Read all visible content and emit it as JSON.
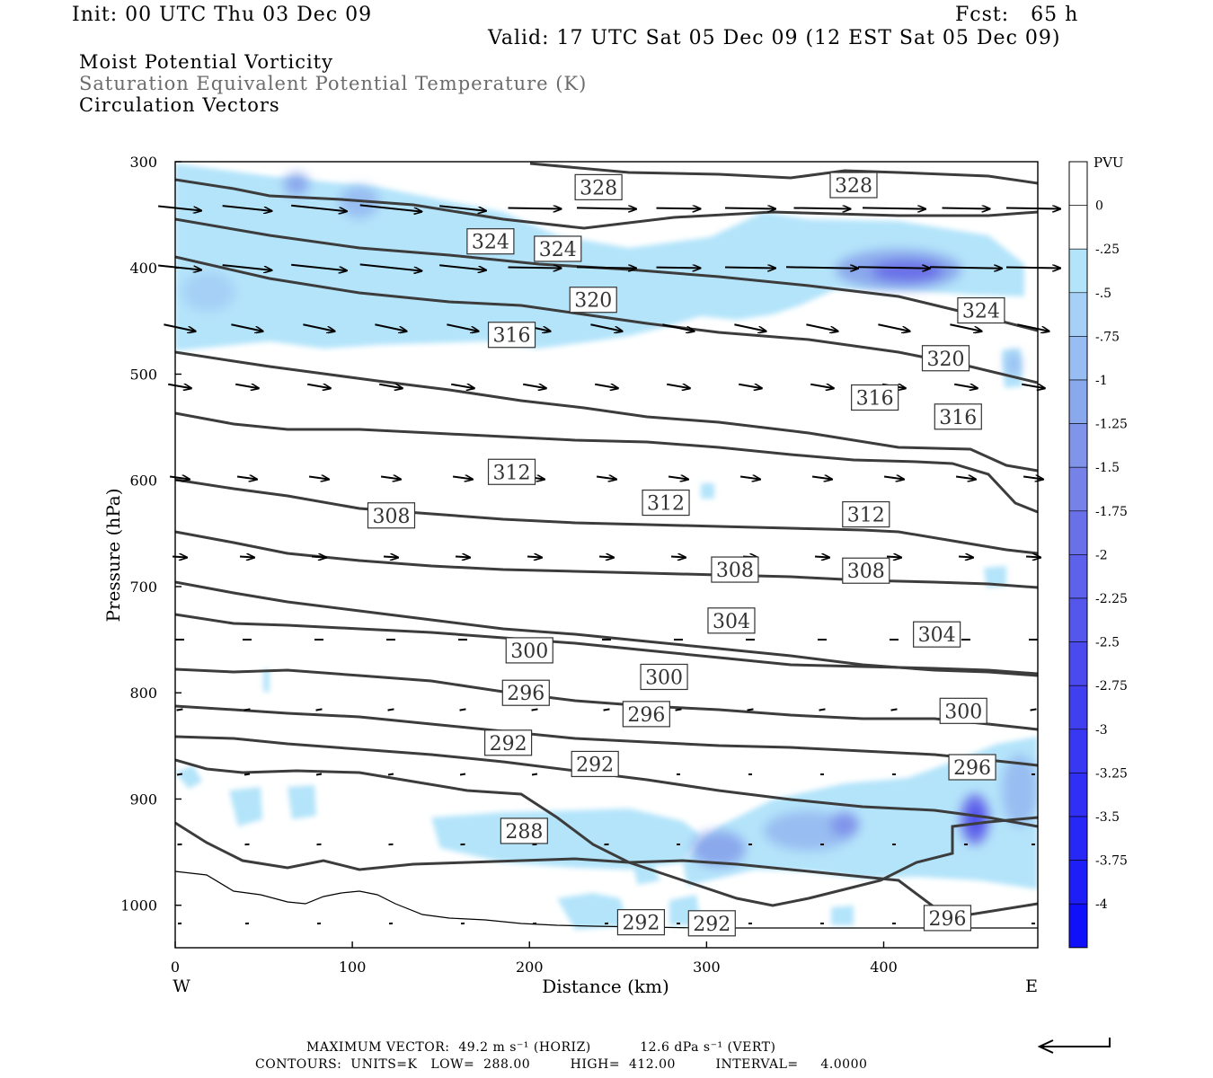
{
  "header": {
    "init": "Init: 00 UTC Thu 03 Dec 09",
    "fcst": "Fcst:   65 h",
    "valid": "Valid: 17 UTC Sat 05 Dec 09 (12 EST Sat 05 Dec 09)",
    "field1": "Moist Potential Vorticity",
    "field2": "Saturation Equivalent Potential Temperature (K)",
    "field3": "Circulation Vectors"
  },
  "footer": {
    "max_vector": "MAXIMUM VECTOR:  49.2 m s⁻¹ (HORIZ)           12.6 dPa s⁻¹ (VERT)",
    "contours": "CONTOURS:  UNITS=K   LOW=  288.00         HIGH=  412.00         INTERVAL=     4.0000"
  },
  "colors": {
    "contour": "#3c3c3c",
    "mpv_light": "#b4e4fa",
    "mpv_mid": "#8aa8ec",
    "mpv_strong": "#6a70e8",
    "mpv_max": "#3030f0"
  },
  "chart_data": {
    "type": "contour",
    "xlabel": "Distance (km)",
    "ylabel": "Pressure (hPa)",
    "xlim": [
      0,
      487
    ],
    "ylim": [
      1040,
      300
    ],
    "x_ticks": [
      0,
      100,
      200,
      300,
      400
    ],
    "y_ticks": [
      300,
      400,
      500,
      600,
      700,
      800,
      900,
      1000
    ],
    "x_end_labels": {
      "left": "W",
      "right": "E"
    },
    "colorbar": {
      "title": "PVU",
      "levels": [
        "0",
        "-.25",
        "-.5",
        "-.75",
        "-1",
        "-1.25",
        "-1.5",
        "-1.75",
        "-2",
        "-2.25",
        "-2.5",
        "-2.75",
        "-3",
        "-3.25",
        "-3.5",
        "-3.75",
        "-4"
      ],
      "colors": [
        "#ffffff",
        "#ffffff",
        "#b4e4fa",
        "#a6d0f6",
        "#98bdf2",
        "#8aa8ec",
        "#8094ea",
        "#7682e8",
        "#6a70e8",
        "#5e62ea",
        "#5456ec",
        "#4a4aee",
        "#4040f0",
        "#3838f2",
        "#3030f4",
        "#2828f6",
        "#1e1ef8",
        "#1010fb"
      ]
    },
    "contour_labels": [
      {
        "label": "328",
        "x": 239,
        "p": 324
      },
      {
        "label": "328",
        "x": 383,
        "p": 322
      },
      {
        "label": "324",
        "x": 178,
        "p": 375
      },
      {
        "label": "324",
        "x": 216,
        "p": 382
      },
      {
        "label": "324",
        "x": 455,
        "p": 440
      },
      {
        "label": "320",
        "x": 236,
        "p": 430
      },
      {
        "label": "320",
        "x": 435,
        "p": 485
      },
      {
        "label": "316",
        "x": 190,
        "p": 463
      },
      {
        "label": "316",
        "x": 395,
        "p": 522
      },
      {
        "label": "316",
        "x": 442,
        "p": 540
      },
      {
        "label": "312",
        "x": 190,
        "p": 592
      },
      {
        "label": "312",
        "x": 277,
        "p": 621
      },
      {
        "label": "312",
        "x": 390,
        "p": 632
      },
      {
        "label": "308",
        "x": 122,
        "p": 633
      },
      {
        "label": "308",
        "x": 316,
        "p": 684
      },
      {
        "label": "308",
        "x": 390,
        "p": 685
      },
      {
        "label": "304",
        "x": 314,
        "p": 732
      },
      {
        "label": "304",
        "x": 430,
        "p": 745
      },
      {
        "label": "300",
        "x": 200,
        "p": 760
      },
      {
        "label": "300",
        "x": 276,
        "p": 785
      },
      {
        "label": "300",
        "x": 445,
        "p": 817
      },
      {
        "label": "296",
        "x": 198,
        "p": 800
      },
      {
        "label": "296",
        "x": 266,
        "p": 820
      },
      {
        "label": "296",
        "x": 450,
        "p": 870
      },
      {
        "label": "296",
        "x": 436,
        "p": 1012
      },
      {
        "label": "292",
        "x": 188,
        "p": 847
      },
      {
        "label": "292",
        "x": 237,
        "p": 867
      },
      {
        "label": "292",
        "x": 263,
        "p": 1016
      },
      {
        "label": "292",
        "x": 303,
        "p": 1017
      },
      {
        "label": "288",
        "x": 197,
        "p": 930
      }
    ]
  }
}
